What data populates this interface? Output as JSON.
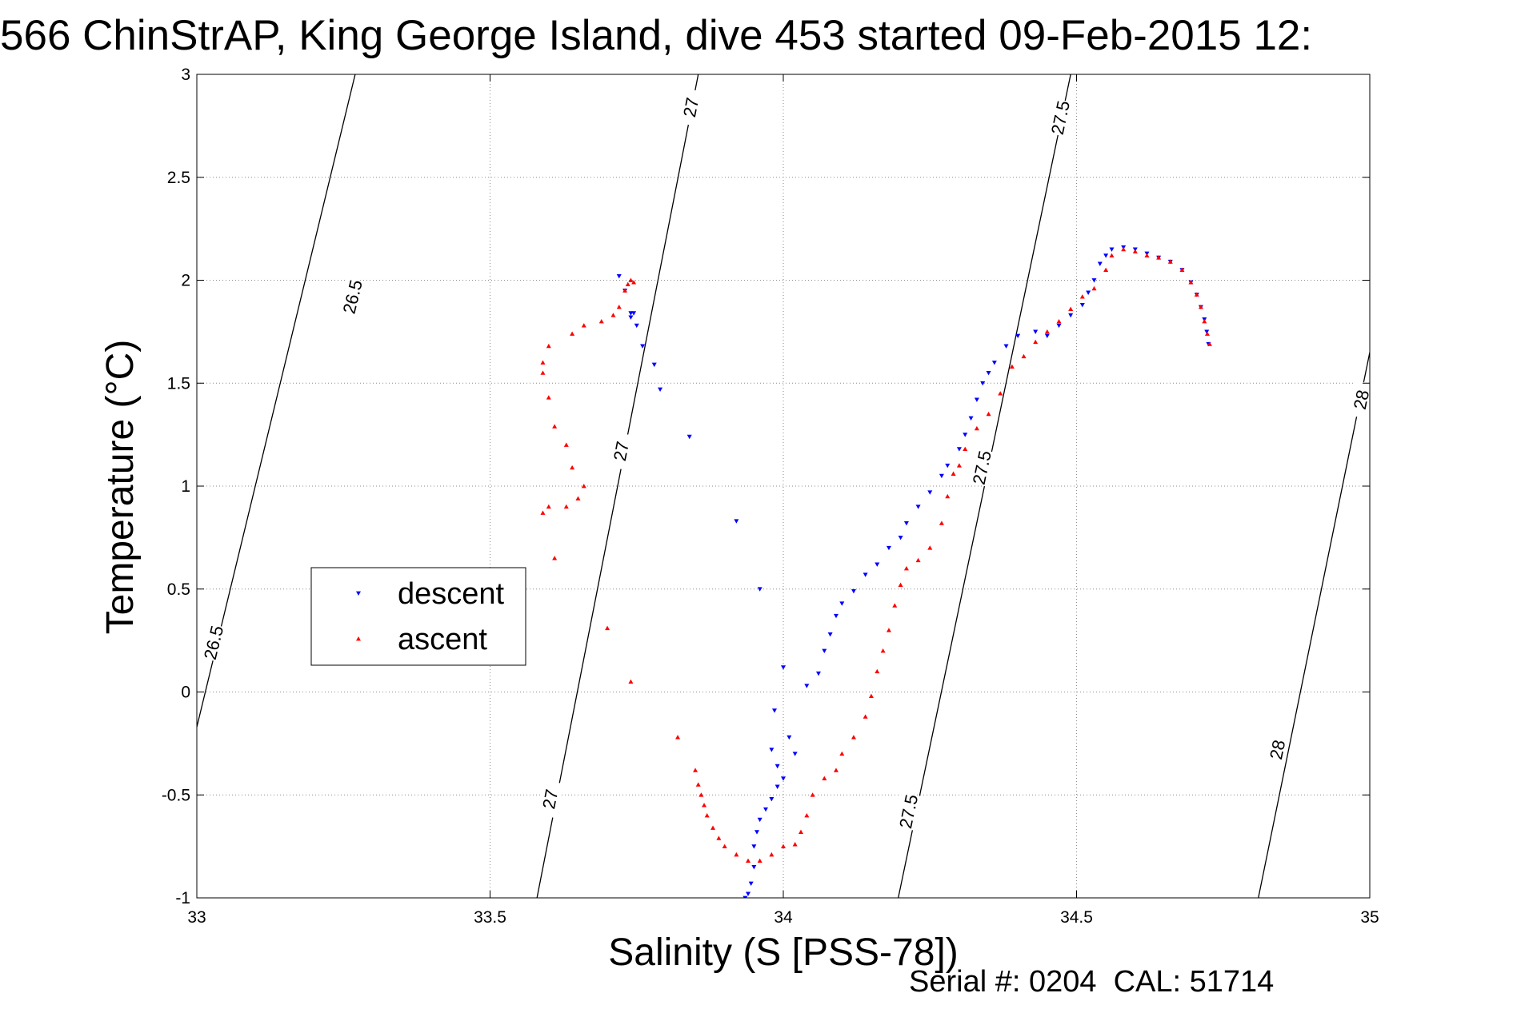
{
  "chart_data": {
    "type": "scatter",
    "title": "566 ChinStrAP, King George Island, dive 453 started 09-Feb-2015 12:",
    "xlabel": "Salinity (S [PSS-78])",
    "ylabel": "Temperature (°C)",
    "xlim": [
      33,
      35
    ],
    "ylim": [
      -1,
      3
    ],
    "xticks": [
      33,
      33.5,
      34,
      34.5,
      35
    ],
    "xtick_labels": [
      "33",
      "33.5",
      "34",
      "34.5",
      "35"
    ],
    "yticks": [
      -1,
      -0.5,
      0,
      0.5,
      1,
      1.5,
      2,
      2.5,
      3
    ],
    "ytick_labels": [
      "-1",
      "-0.5",
      "0",
      "0.5",
      "1",
      "1.5",
      "2",
      "2.5",
      "3"
    ],
    "grid": true,
    "legend_position": "middle-left",
    "footer": "Serial #: 0204  CAL: 51714",
    "contours": [
      {
        "level": "26.5",
        "points": [
          [
            33.0,
            -0.17
          ],
          [
            33.27,
            3.0
          ]
        ],
        "labels": [
          {
            "x": 33.265,
            "y": 1.92
          },
          {
            "x": 33.028,
            "y": 0.24
          }
        ]
      },
      {
        "level": "27",
        "points": [
          [
            33.58,
            -1.0
          ],
          [
            33.855,
            3.0
          ]
        ],
        "labels": [
          {
            "x": 33.842,
            "y": 2.84
          },
          {
            "x": 33.723,
            "y": 1.17
          },
          {
            "x": 33.602,
            "y": -0.52
          }
        ]
      },
      {
        "level": "27.5",
        "points": [
          [
            34.196,
            -1.0
          ],
          [
            34.49,
            3.0
          ]
        ],
        "labels": [
          {
            "x": 34.472,
            "y": 2.79
          },
          {
            "x": 34.338,
            "y": 1.09
          },
          {
            "x": 34.213,
            "y": -0.58
          }
        ]
      },
      {
        "level": "28",
        "points": [
          [
            34.81,
            -1.0
          ],
          [
            35.0,
            1.65
          ]
        ],
        "labels": [
          {
            "x": 34.985,
            "y": 1.42
          },
          {
            "x": 34.842,
            "y": -0.28
          }
        ]
      }
    ],
    "series": [
      {
        "name": "descent",
        "color": "#0000ff",
        "marker": "triangle-down",
        "points": [
          [
            33.72,
            2.02
          ],
          [
            33.73,
            1.95
          ],
          [
            33.74,
            1.84
          ],
          [
            33.74,
            1.82
          ],
          [
            33.745,
            1.84
          ],
          [
            33.75,
            1.78
          ],
          [
            33.76,
            1.68
          ],
          [
            33.78,
            1.59
          ],
          [
            33.79,
            1.47
          ],
          [
            33.84,
            1.24
          ],
          [
            33.92,
            0.83
          ],
          [
            33.96,
            0.5
          ],
          [
            34.0,
            0.12
          ],
          [
            33.985,
            -0.09
          ],
          [
            33.98,
            -0.28
          ],
          [
            33.99,
            -0.36
          ],
          [
            34.0,
            -0.42
          ],
          [
            33.99,
            -0.46
          ],
          [
            33.98,
            -0.52
          ],
          [
            33.97,
            -0.57
          ],
          [
            33.96,
            -0.62
          ],
          [
            33.955,
            -0.68
          ],
          [
            33.95,
            -0.75
          ],
          [
            33.95,
            -0.85
          ],
          [
            33.945,
            -0.93
          ],
          [
            33.94,
            -0.98
          ],
          [
            33.935,
            -1.0
          ],
          [
            34.02,
            -0.3
          ],
          [
            34.01,
            -0.22
          ],
          [
            34.04,
            0.03
          ],
          [
            34.06,
            0.09
          ],
          [
            34.07,
            0.2
          ],
          [
            34.08,
            0.28
          ],
          [
            34.09,
            0.37
          ],
          [
            34.1,
            0.43
          ],
          [
            34.12,
            0.49
          ],
          [
            34.14,
            0.57
          ],
          [
            34.16,
            0.62
          ],
          [
            34.18,
            0.7
          ],
          [
            34.2,
            0.75
          ],
          [
            34.21,
            0.82
          ],
          [
            34.23,
            0.9
          ],
          [
            34.25,
            0.97
          ],
          [
            34.27,
            1.05
          ],
          [
            34.28,
            1.1
          ],
          [
            34.3,
            1.18
          ],
          [
            34.31,
            1.25
          ],
          [
            34.32,
            1.33
          ],
          [
            34.33,
            1.42
          ],
          [
            34.34,
            1.5
          ],
          [
            34.35,
            1.55
          ],
          [
            34.36,
            1.6
          ],
          [
            34.38,
            1.68
          ],
          [
            34.4,
            1.73
          ],
          [
            34.43,
            1.75
          ],
          [
            34.45,
            1.73
          ],
          [
            34.47,
            1.78
          ],
          [
            34.49,
            1.83
          ],
          [
            34.51,
            1.88
          ],
          [
            34.52,
            1.94
          ],
          [
            34.53,
            2.0
          ],
          [
            34.54,
            2.08
          ],
          [
            34.55,
            2.12
          ],
          [
            34.56,
            2.15
          ],
          [
            34.58,
            2.16
          ],
          [
            34.6,
            2.15
          ],
          [
            34.62,
            2.13
          ],
          [
            34.64,
            2.11
          ],
          [
            34.66,
            2.09
          ],
          [
            34.68,
            2.05
          ],
          [
            34.695,
            1.99
          ],
          [
            34.705,
            1.93
          ],
          [
            34.712,
            1.87
          ],
          [
            34.718,
            1.81
          ],
          [
            34.722,
            1.75
          ],
          [
            34.725,
            1.69
          ]
        ]
      },
      {
        "name": "ascent",
        "color": "#ff0000",
        "marker": "triangle-up",
        "points": [
          [
            33.745,
            1.99
          ],
          [
            33.74,
            2.0
          ],
          [
            33.735,
            1.98
          ],
          [
            33.73,
            1.95
          ],
          [
            33.72,
            1.87
          ],
          [
            33.71,
            1.83
          ],
          [
            33.69,
            1.8
          ],
          [
            33.66,
            1.78
          ],
          [
            33.64,
            1.74
          ],
          [
            33.6,
            1.68
          ],
          [
            33.59,
            1.6
          ],
          [
            33.59,
            1.55
          ],
          [
            33.6,
            1.43
          ],
          [
            33.61,
            1.29
          ],
          [
            33.63,
            1.2
          ],
          [
            33.64,
            1.09
          ],
          [
            33.66,
            1.0
          ],
          [
            33.65,
            0.94
          ],
          [
            33.6,
            0.9
          ],
          [
            33.63,
            0.9
          ],
          [
            33.59,
            0.87
          ],
          [
            33.61,
            0.65
          ],
          [
            33.7,
            0.31
          ],
          [
            33.74,
            0.05
          ],
          [
            33.82,
            -0.22
          ],
          [
            33.85,
            -0.38
          ],
          [
            33.855,
            -0.45
          ],
          [
            33.86,
            -0.5
          ],
          [
            33.865,
            -0.55
          ],
          [
            33.87,
            -0.6
          ],
          [
            33.88,
            -0.66
          ],
          [
            33.89,
            -0.71
          ],
          [
            33.9,
            -0.75
          ],
          [
            33.92,
            -0.79
          ],
          [
            33.94,
            -0.82
          ],
          [
            33.96,
            -0.82
          ],
          [
            33.98,
            -0.79
          ],
          [
            34.0,
            -0.75
          ],
          [
            34.02,
            -0.74
          ],
          [
            34.03,
            -0.68
          ],
          [
            34.04,
            -0.6
          ],
          [
            34.05,
            -0.5
          ],
          [
            34.07,
            -0.42
          ],
          [
            34.09,
            -0.38
          ],
          [
            34.1,
            -0.3
          ],
          [
            34.12,
            -0.22
          ],
          [
            34.14,
            -0.12
          ],
          [
            34.15,
            -0.02
          ],
          [
            34.16,
            0.1
          ],
          [
            34.17,
            0.2
          ],
          [
            34.18,
            0.3
          ],
          [
            34.19,
            0.42
          ],
          [
            34.2,
            0.52
          ],
          [
            34.21,
            0.6
          ],
          [
            34.23,
            0.64
          ],
          [
            34.25,
            0.7
          ],
          [
            34.27,
            0.82
          ],
          [
            34.28,
            0.95
          ],
          [
            34.29,
            1.06
          ],
          [
            34.3,
            1.1
          ],
          [
            34.31,
            1.18
          ],
          [
            34.33,
            1.28
          ],
          [
            34.35,
            1.35
          ],
          [
            34.37,
            1.45
          ],
          [
            34.39,
            1.58
          ],
          [
            34.41,
            1.63
          ],
          [
            34.43,
            1.7
          ],
          [
            34.45,
            1.75
          ],
          [
            34.47,
            1.8
          ],
          [
            34.49,
            1.86
          ],
          [
            34.51,
            1.92
          ],
          [
            34.53,
            1.96
          ],
          [
            34.55,
            2.05
          ],
          [
            34.56,
            2.12
          ],
          [
            34.58,
            2.15
          ],
          [
            34.6,
            2.14
          ],
          [
            34.62,
            2.12
          ],
          [
            34.64,
            2.11
          ],
          [
            34.66,
            2.09
          ],
          [
            34.68,
            2.05
          ],
          [
            34.695,
            1.99
          ],
          [
            34.705,
            1.93
          ],
          [
            34.712,
            1.87
          ],
          [
            34.718,
            1.8
          ],
          [
            34.723,
            1.74
          ],
          [
            34.727,
            1.69
          ]
        ]
      }
    ]
  }
}
